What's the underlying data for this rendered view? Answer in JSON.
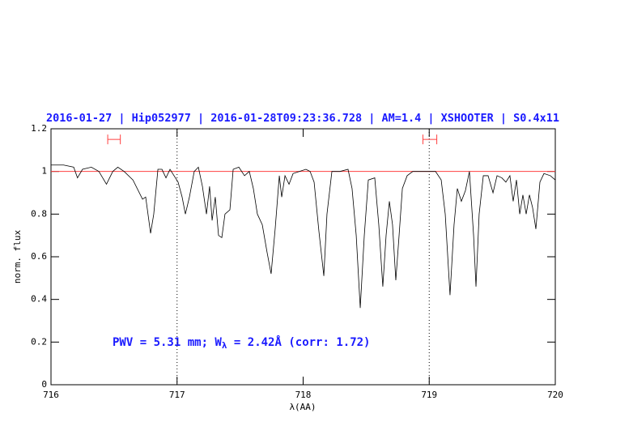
{
  "chart_data": {
    "type": "line",
    "title": "2016-01-27 | Hip052977 | 2016-01-28T09:23:36.728 | AM=1.4 | XSHOOTER | S0.4x11",
    "x_label": "λ(AA)",
    "y_label": "norm. flux",
    "annotation": [
      "PWV = 5.31 mm; W",
      "λ",
      " = 2.42Å (corr: 1.72)"
    ],
    "xlim": [
      716,
      720
    ],
    "xticks": [
      716,
      717,
      718,
      719,
      720
    ],
    "ylim": [
      0,
      1.2
    ],
    "yticks": [
      0,
      0.2,
      0.4,
      0.6,
      0.8,
      1,
      1.2
    ],
    "vlines": [
      717,
      719
    ],
    "hline": 1,
    "hline_color": "#ff4040",
    "intervals": [
      [
        716.45,
        716.55
      ],
      [
        718.95,
        719.06
      ]
    ],
    "interval_y": 1.15,
    "interval_color": "#ff4040",
    "series": [
      {
        "color": "#000000",
        "x": [
          716.0,
          716.1,
          716.18,
          716.21,
          716.25,
          716.32,
          716.38,
          716.44,
          716.49,
          716.53,
          716.58,
          716.65,
          716.726,
          716.751,
          716.79,
          716.815,
          716.848,
          716.88,
          716.912,
          716.944,
          716.976,
          717.008,
          717.04,
          717.066,
          717.098,
          717.136,
          717.169,
          717.201,
          717.233,
          717.258,
          717.278,
          717.303,
          717.329,
          717.355,
          717.38,
          717.419,
          717.445,
          717.49,
          717.535,
          717.573,
          717.605,
          717.637,
          717.676,
          717.714,
          717.746,
          717.778,
          717.811,
          717.83,
          717.856,
          717.888,
          717.92,
          717.971,
          718.022,
          718.055,
          718.087,
          718.125,
          718.164,
          718.189,
          718.228,
          718.292,
          718.356,
          718.388,
          718.421,
          718.453,
          718.485,
          718.517,
          718.568,
          718.6,
          718.632,
          718.658,
          718.684,
          718.709,
          718.735,
          718.761,
          718.787,
          718.825,
          718.87,
          718.934,
          718.999,
          719.05,
          719.095,
          719.127,
          719.165,
          719.197,
          719.223,
          719.255,
          719.287,
          719.319,
          719.352,
          719.371,
          719.396,
          719.429,
          719.467,
          719.506,
          719.538,
          719.576,
          719.608,
          719.64,
          719.666,
          719.692,
          719.718,
          719.743,
          719.769,
          719.795,
          719.82,
          719.846,
          719.878,
          719.91,
          719.961,
          720.0
        ],
        "values": [
          1.03,
          1.03,
          1.02,
          0.97,
          1.01,
          1.02,
          1.0,
          0.94,
          1.0,
          1.02,
          1.0,
          0.96,
          0.87,
          0.88,
          0.71,
          0.8,
          1.01,
          1.01,
          0.97,
          1.01,
          0.98,
          0.95,
          0.88,
          0.8,
          0.88,
          1.0,
          1.02,
          0.93,
          0.8,
          0.93,
          0.77,
          0.88,
          0.7,
          0.69,
          0.8,
          0.82,
          1.01,
          1.02,
          0.98,
          1.0,
          0.92,
          0.8,
          0.75,
          0.62,
          0.52,
          0.73,
          0.98,
          0.88,
          0.98,
          0.94,
          0.99,
          1.0,
          1.01,
          1.0,
          0.95,
          0.72,
          0.51,
          0.8,
          1.0,
          1.0,
          1.01,
          0.92,
          0.7,
          0.36,
          0.7,
          0.96,
          0.97,
          0.75,
          0.46,
          0.7,
          0.86,
          0.75,
          0.49,
          0.7,
          0.92,
          0.98,
          1.0,
          1.0,
          1.0,
          1.0,
          0.96,
          0.8,
          0.42,
          0.75,
          0.92,
          0.86,
          0.91,
          1.0,
          0.7,
          0.46,
          0.8,
          0.98,
          0.98,
          0.9,
          0.98,
          0.97,
          0.95,
          0.98,
          0.86,
          0.96,
          0.8,
          0.89,
          0.8,
          0.89,
          0.83,
          0.73,
          0.95,
          0.99,
          0.98,
          0.96
        ]
      }
    ]
  }
}
